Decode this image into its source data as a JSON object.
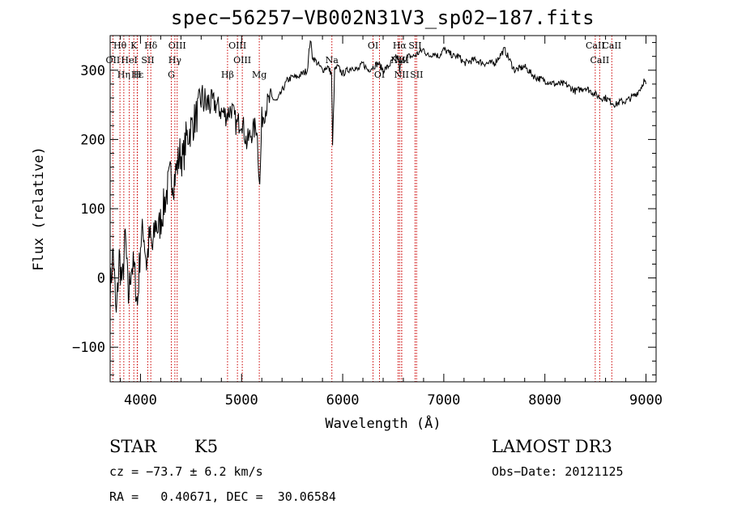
{
  "header": {
    "title": "spec−56257−VB002N31V3_sp02−187.fits"
  },
  "footer": {
    "class_label": "STAR",
    "subclass": "K5",
    "survey": "LAMOST DR3",
    "cz_text": "cz = −73.7 ± 6.2 km/s",
    "obs_date": "Obs−Date: 20121125",
    "radec": "RA =   0.40671, DEC =  30.06584"
  },
  "colors": {
    "spectrum": "#000000",
    "lines": "#cc0000",
    "axes": "#000000"
  },
  "chart_data": {
    "type": "line",
    "title": "spec−56257−VB002N31V3_sp02−187.fits",
    "xlabel": "Wavelength (Å)",
    "ylabel": "Flux (relative)",
    "xlim": [
      3700,
      9100
    ],
    "ylim": [
      -150,
      350
    ],
    "xticks": [
      4000,
      5000,
      6000,
      7000,
      8000,
      9000
    ],
    "yticks": [
      -100,
      0,
      100,
      200,
      300
    ],
    "xtick_labels": [
      "4000",
      "5000",
      "6000",
      "7000",
      "8000",
      "9000"
    ],
    "ytick_labels": [
      "−100",
      "0",
      "100",
      "200",
      "300"
    ],
    "grid": false,
    "spectrum": {
      "x": [
        3700,
        3730,
        3760,
        3790,
        3820,
        3850,
        3880,
        3910,
        3940,
        3970,
        4000,
        4030,
        4060,
        4090,
        4120,
        4150,
        4180,
        4210,
        4240,
        4270,
        4300,
        4330,
        4360,
        4390,
        4420,
        4450,
        4480,
        4510,
        4540,
        4570,
        4600,
        4650,
        4700,
        4750,
        4800,
        4850,
        4900,
        4950,
        5000,
        5050,
        5100,
        5150,
        5180,
        5200,
        5250,
        5300,
        5350,
        5400,
        5450,
        5500,
        5550,
        5600,
        5650,
        5680,
        5700,
        5750,
        5800,
        5850,
        5890,
        5900,
        5920,
        5950,
        6000,
        6050,
        6100,
        6150,
        6200,
        6250,
        6300,
        6350,
        6400,
        6450,
        6500,
        6550,
        6563,
        6580,
        6600,
        6650,
        6700,
        6750,
        6800,
        6850,
        6900,
        6950,
        7000,
        7050,
        7100,
        7150,
        7200,
        7300,
        7400,
        7500,
        7600,
        7650,
        7700,
        7800,
        7900,
        8000,
        8100,
        8200,
        8300,
        8400,
        8500,
        8550,
        8600,
        8650,
        8700,
        8750,
        8800,
        8850,
        8900,
        8950,
        8980,
        9000
      ],
      "flux": [
        -20,
        40,
        -60,
        30,
        -10,
        60,
        -30,
        20,
        10,
        -40,
        50,
        70,
        20,
        60,
        40,
        80,
        70,
        90,
        110,
        130,
        150,
        140,
        160,
        180,
        170,
        200,
        210,
        220,
        230,
        240,
        260,
        250,
        255,
        250,
        240,
        235,
        245,
        220,
        230,
        195,
        210,
        220,
        130,
        230,
        250,
        260,
        255,
        270,
        285,
        290,
        290,
        295,
        300,
        345,
        320,
        310,
        300,
        305,
        295,
        190,
        300,
        305,
        295,
        300,
        305,
        300,
        310,
        300,
        305,
        310,
        300,
        305,
        315,
        320,
        300,
        310,
        315,
        320,
        320,
        325,
        330,
        320,
        325,
        320,
        330,
        325,
        320,
        320,
        310,
        315,
        310,
        310,
        330,
        315,
        300,
        305,
        290,
        285,
        280,
        280,
        270,
        275,
        265,
        260,
        260,
        255,
        250,
        255,
        255,
        260,
        265,
        275,
        285,
        280
      ]
    },
    "spectral_lines": [
      {
        "name": "Hθ",
        "wavelength": 3797
      },
      {
        "name": "K",
        "wavelength": 3934
      },
      {
        "name": "Hδ",
        "wavelength": 4102
      },
      {
        "name": "OIII",
        "wavelength": 4363
      },
      {
        "name": "OIII",
        "wavelength": 4959
      },
      {
        "name": "OI",
        "wavelength": 6300
      },
      {
        "name": "Hα",
        "wavelength": 6563
      },
      {
        "name": "SII",
        "wavelength": 6716
      },
      {
        "name": "CaII",
        "wavelength": 8498
      },
      {
        "name": "OII",
        "wavelength": 3727
      },
      {
        "name": "HeI",
        "wavelength": 3889
      },
      {
        "name": "SII",
        "wavelength": 4072
      },
      {
        "name": "Hγ",
        "wavelength": 4340
      },
      {
        "name": "OIII",
        "wavelength": 5007
      },
      {
        "name": "Na",
        "wavelength": 5893
      },
      {
        "name": "NII",
        "wavelength": 6548
      },
      {
        "name": "NII",
        "wavelength": 6584
      },
      {
        "name": "CaII",
        "wavelength": 8542
      },
      {
        "name": "Hε",
        "wavelength": 3970
      },
      {
        "name": "Hη",
        "wavelength": 3835
      },
      {
        "name": "H",
        "wavelength": 3968
      },
      {
        "name": "G",
        "wavelength": 4305
      },
      {
        "name": "Hβ",
        "wavelength": 4861
      },
      {
        "name": "Mg",
        "wavelength": 5175
      },
      {
        "name": "OI",
        "wavelength": 6364
      },
      {
        "name": "NII",
        "wavelength": 6583
      },
      {
        "name": "SII",
        "wavelength": 6731
      },
      {
        "name": "CaII",
        "wavelength": 8662
      }
    ]
  }
}
